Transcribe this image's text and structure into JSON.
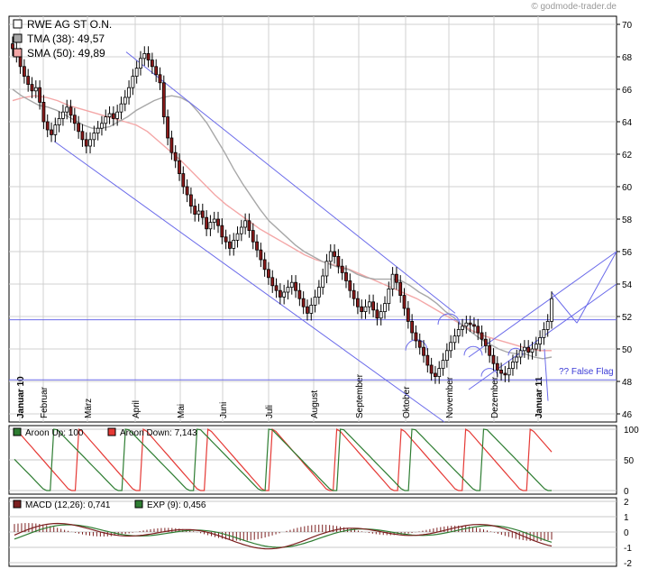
{
  "watermark": "© godmode-trader.de",
  "chart_data": [
    {
      "type": "candlestick",
      "title": "RWE AG ST O.N.",
      "ylim": [
        45.5,
        70.5
      ],
      "yticks": [
        46,
        48,
        50,
        52,
        54,
        56,
        58,
        60,
        62,
        64,
        66,
        68,
        70
      ],
      "x_labels": [
        "Januar 10",
        "Februar",
        "März",
        "April",
        "Mai",
        "Juni",
        "Juli",
        "August",
        "September",
        "Oktober",
        "November",
        "Dezember",
        "Januar 11"
      ],
      "legend": [
        {
          "label": "RWE AG ST O.N.",
          "color": "#ffffff"
        },
        {
          "label": "TMA (38): 49,57",
          "color": "#a8a8a8"
        },
        {
          "label": "SMA (50): 49,89",
          "color": "#f4a7a7"
        }
      ],
      "annotations": [
        "?? False Flag"
      ],
      "horizontal_lines": [
        51.8,
        48.1
      ],
      "close_series": [
        68.5,
        68.1,
        67.4,
        66.8,
        66.3,
        65.9,
        66.1,
        65.2,
        64.0,
        63.5,
        63.2,
        63.8,
        64.2,
        64.6,
        64.9,
        64.4,
        63.9,
        63.4,
        62.9,
        62.5,
        62.9,
        63.3,
        63.6,
        63.9,
        64.3,
        64.5,
        64.2,
        64.6,
        65.1,
        65.5,
        66.1,
        66.8,
        67.3,
        67.9,
        68.2,
        67.8,
        67.4,
        66.9,
        66.4,
        64.3,
        63.0,
        62.1,
        61.6,
        60.8,
        60.0,
        59.5,
        58.8,
        58.3,
        58.5,
        58.1,
        57.4,
        57.8,
        58.0,
        57.6,
        56.9,
        56.6,
        56.2,
        56.7,
        57.1,
        57.5,
        57.9,
        57.3,
        56.6,
        56.1,
        55.5,
        54.9,
        54.4,
        53.9,
        53.6,
        53.2,
        53.5,
        53.8,
        54.1,
        53.6,
        53.1,
        52.6,
        52.2,
        52.7,
        53.2,
        53.8,
        54.5,
        55.4,
        56.0,
        55.7,
        55.1,
        54.7,
        54.2,
        53.6,
        53.1,
        52.6,
        52.3,
        52.6,
        52.9,
        52.4,
        51.9,
        52.3,
        52.8,
        53.7,
        54.6,
        54.1,
        53.3,
        52.5,
        51.7,
        51.0,
        50.5,
        50.1,
        49.6,
        49.0,
        48.5,
        48.3,
        48.8,
        49.3,
        49.9,
        50.4,
        50.8,
        51.2,
        51.4,
        51.6,
        51.5,
        51.4,
        51.0,
        50.6,
        50.2,
        49.6,
        49.1,
        48.7,
        48.5,
        48.4,
        48.8,
        49.2,
        49.5,
        49.9,
        50.1,
        49.8,
        50.0,
        50.3,
        50.7,
        51.2,
        51.7,
        53.1
      ],
      "tma_series": [
        66.0,
        65.6,
        65.3,
        65.0,
        64.9,
        64.7,
        64.4,
        64.1,
        63.8,
        63.6,
        63.6,
        63.7,
        64.0,
        64.3,
        64.7,
        65.0,
        65.3,
        65.5,
        65.6,
        65.5,
        65.2,
        64.6,
        63.9,
        63.0,
        62.1,
        61.1,
        60.2,
        59.4,
        58.6,
        57.9,
        57.4,
        56.9,
        56.4,
        56.0,
        55.7,
        55.4,
        55.2,
        55.0,
        54.9,
        54.6,
        54.4,
        54.3,
        54.3,
        54.3,
        54.2,
        53.9,
        53.5,
        53.2,
        52.8,
        52.3,
        51.9,
        51.4,
        51.0,
        50.6,
        50.3,
        50.0,
        49.8,
        49.7,
        49.7,
        49.5,
        49.4,
        49.5
      ],
      "sma_series": [
        65.3,
        65.5,
        65.6,
        65.5,
        65.3,
        65.0,
        64.8,
        64.6,
        64.4,
        64.2,
        64.0,
        63.8,
        63.4,
        62.8,
        62.2,
        61.6,
        60.9,
        60.2,
        59.5,
        58.9,
        58.4,
        57.9,
        57.4,
        57.0,
        56.6,
        56.2,
        55.8,
        55.5,
        55.3,
        55.1,
        54.9,
        54.6,
        54.3,
        54.0,
        53.7,
        53.4,
        53.1,
        52.7,
        52.3,
        51.9,
        51.5,
        51.1,
        50.8,
        50.6,
        50.4,
        50.2,
        50.0,
        49.9,
        49.9
      ]
    },
    {
      "type": "line",
      "title": "Aroon",
      "ylim": [
        0,
        100
      ],
      "yticks": [
        0,
        50,
        100
      ],
      "series": [
        {
          "name": "Aroon Up: 100",
          "color": "#2e7d32"
        },
        {
          "name": "Aroon Down: 7,143",
          "color": "#e53935"
        }
      ]
    },
    {
      "type": "line",
      "title": "MACD",
      "ylim": [
        -2,
        2
      ],
      "yticks": [
        -2,
        -1,
        0,
        1,
        2
      ],
      "series": [
        {
          "name": "MACD (12,26): 0,741",
          "color": "#7b1f1f"
        },
        {
          "name": "EXP (9): 0,456",
          "color": "#2e7d32"
        }
      ]
    }
  ]
}
